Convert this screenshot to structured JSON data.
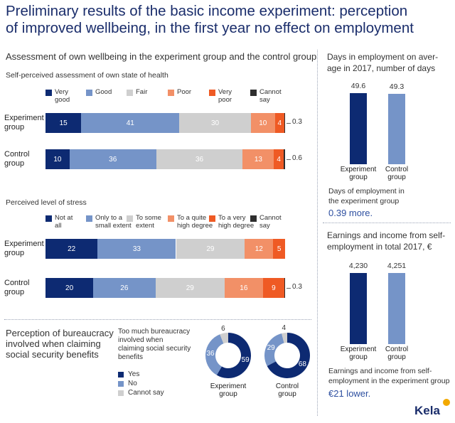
{
  "title": "Preliminary results of the basic income experiment: perception\nof improved wellbeing, in the first year no effect on employment",
  "colors": {
    "navy": "#0d2a72",
    "steel": "#7594c8",
    "grey": "#cfcfcf",
    "salmon": "#f29067",
    "orange": "#ef5a24",
    "black": "#2e2e2e",
    "brand": "#1a2d6b"
  },
  "wellbeing": {
    "title": "Assessment of own wellbeing in the experiment group and the control group",
    "health_title": "Self-perceived assessment of own state of health",
    "stress_title": "Perceived level of stress"
  },
  "days": {
    "title": "Days in employment on aver-\nage in 2017, number of days",
    "note": "Days of employment in\nthe experiment group",
    "highlight": "0.39 more."
  },
  "earnings": {
    "title": "Earnings and income from self-\nemployment in total 2017, €",
    "note": "Earnings and income from self-\nemployment in the experiment group",
    "highlight": "€21 lower."
  },
  "bureaucracy": {
    "title": "Perception of bureaucracy\ninvolved when claiming\nsocial security benefits",
    "question": "Too much bureaucracy\ninvolved when\nclaiming social security\nbenefits"
  },
  "logo": {
    "text": "Kela"
  },
  "chart_data": [
    {
      "id": "health",
      "type": "bar",
      "orientation": "horizontal-stacked",
      "title": "Self-perceived assessment of own state of health",
      "legend": [
        "Very\ngood",
        "Good",
        "Fair",
        "Poor",
        "Very\npoor",
        "Cannot\nsay"
      ],
      "legend_placement": "top",
      "categories": [
        "Experiment\ngroup",
        "Control\ngroup"
      ],
      "series": [
        {
          "name": "Very good",
          "values": [
            15,
            10
          ],
          "color": "#0d2a72"
        },
        {
          "name": "Good",
          "values": [
            41,
            36
          ],
          "color": "#7594c8"
        },
        {
          "name": "Fair",
          "values": [
            30,
            36
          ],
          "color": "#cfcfcf"
        },
        {
          "name": "Poor",
          "values": [
            10,
            13
          ],
          "color": "#f29067"
        },
        {
          "name": "Very poor",
          "values": [
            4,
            4
          ],
          "color": "#ef5a24"
        },
        {
          "name": "Cannot say",
          "values": [
            0.3,
            0.6
          ],
          "color": "#2e2e2e"
        }
      ],
      "value_labels": [
        [
          "15",
          "41",
          "30",
          "10",
          "4",
          "0.3"
        ],
        [
          "10",
          "36",
          "36",
          "13",
          "4",
          "0.6"
        ]
      ]
    },
    {
      "id": "stress",
      "type": "bar",
      "orientation": "horizontal-stacked",
      "title": "Perceived level of stress",
      "legend": [
        "Not at\nall",
        "Only to a\nsmall extent",
        "To some\nextent",
        "To a quite\nhigh degree",
        "To a very\nhigh degree",
        "Cannot\nsay"
      ],
      "legend_placement": "top",
      "categories": [
        "Experiment\ngroup",
        "Control\ngroup"
      ],
      "series": [
        {
          "name": "Not at all",
          "values": [
            22,
            20
          ],
          "color": "#0d2a72"
        },
        {
          "name": "Only to a small extent",
          "values": [
            33,
            26
          ],
          "color": "#7594c8"
        },
        {
          "name": "To some extent",
          "values": [
            29,
            29
          ],
          "color": "#cfcfcf"
        },
        {
          "name": "To a quite high degree",
          "values": [
            12,
            16
          ],
          "color": "#f29067"
        },
        {
          "name": "To a very high degree",
          "values": [
            5,
            9
          ],
          "color": "#ef5a24"
        },
        {
          "name": "Cannot say",
          "values": [
            0,
            0.3
          ],
          "color": "#2e2e2e"
        }
      ],
      "value_labels": [
        [
          "22",
          "33",
          "29",
          "12",
          "5",
          ""
        ],
        [
          "20",
          "26",
          "29",
          "16",
          "9",
          "0.3"
        ]
      ]
    },
    {
      "id": "days",
      "type": "bar",
      "title": "Days in employment on average in 2017, number of days",
      "categories": [
        "Experiment\ngroup",
        "Control\ngroup"
      ],
      "values": [
        49.6,
        49.3
      ],
      "value_labels": [
        "49.6",
        "49.3"
      ],
      "colors": [
        "#0d2a72",
        "#7594c8"
      ]
    },
    {
      "id": "earnings",
      "type": "bar",
      "title": "Earnings and income from self-employment in total 2017, €",
      "categories": [
        "Experiment\ngroup",
        "Control\ngroup"
      ],
      "values": [
        4230,
        4251
      ],
      "value_labels": [
        "4,230",
        "4,251"
      ],
      "colors": [
        "#0d2a72",
        "#7594c8"
      ]
    },
    {
      "id": "bureaucracy",
      "type": "pie",
      "style": "donut",
      "legend": [
        "Yes",
        "No",
        "Cannot say"
      ],
      "groups": [
        {
          "label": "Experiment\ngroup",
          "values": [
            59,
            36,
            6
          ],
          "labels": [
            "59",
            "36",
            "6"
          ]
        },
        {
          "label": "Control\ngroup",
          "values": [
            68,
            29,
            4
          ],
          "labels": [
            "68",
            "29",
            "4"
          ]
        }
      ],
      "colors": [
        "#0d2a72",
        "#7594c8",
        "#cfcfcf"
      ]
    }
  ]
}
